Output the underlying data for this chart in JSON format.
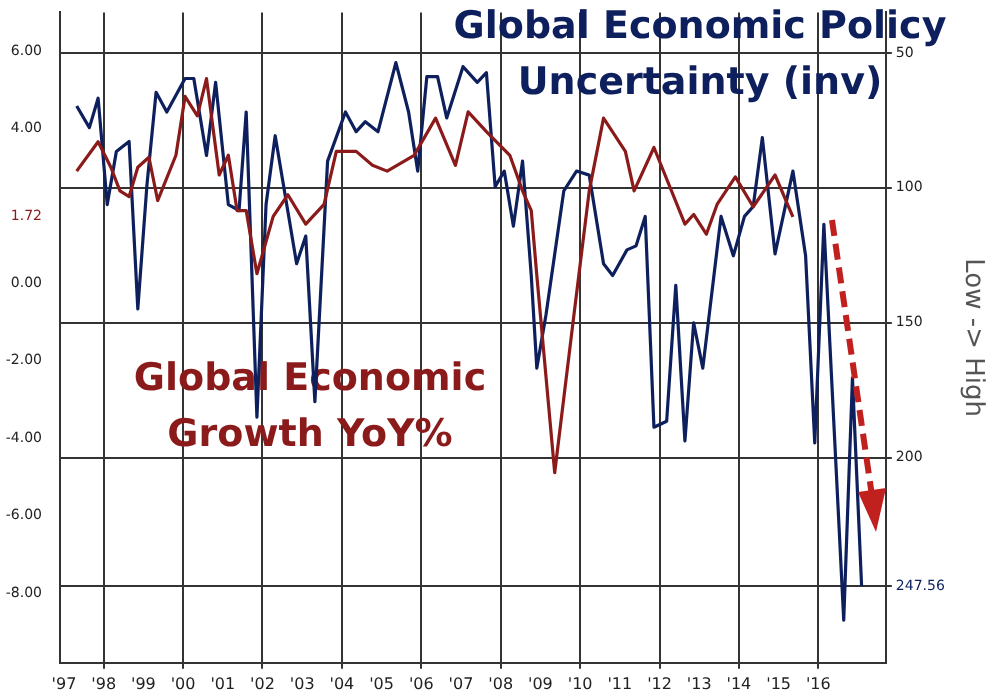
{
  "chart_data": {
    "type": "line",
    "ylabel": null,
    "y2label": "Low -> High",
    "legend": false,
    "grid": true,
    "marker": "none",
    "line_style": "solid",
    "xlim": [
      1996.9,
      2017.7
    ],
    "xticks": [
      {
        "value": 1997,
        "label": "'97"
      },
      {
        "value": 1998,
        "label": "'98"
      },
      {
        "value": 1999,
        "label": "'99"
      },
      {
        "value": 2000,
        "label": "'00"
      },
      {
        "value": 2001,
        "label": "'01"
      },
      {
        "value": 2002,
        "label": "'02"
      },
      {
        "value": 2003,
        "label": "'03"
      },
      {
        "value": 2004,
        "label": "'04"
      },
      {
        "value": 2005,
        "label": "'05"
      },
      {
        "value": 2006,
        "label": "'06"
      },
      {
        "value": 2007,
        "label": "'07"
      },
      {
        "value": 2008,
        "label": "'08"
      },
      {
        "value": 2009,
        "label": "'09"
      },
      {
        "value": 2010,
        "label": "'10"
      },
      {
        "value": 2011,
        "label": "'11"
      },
      {
        "value": 2012,
        "label": "'12"
      },
      {
        "value": 2013,
        "label": "'13"
      },
      {
        "value": 2014,
        "label": "'14"
      },
      {
        "value": 2015,
        "label": "'15"
      },
      {
        "value": 2016,
        "label": "'16"
      }
    ],
    "ylim": [
      -9.8,
      7
    ],
    "yticks": [
      {
        "value": 6,
        "label": "6.00"
      },
      {
        "value": 4,
        "label": "4.00"
      },
      {
        "value": 1.72,
        "label": "1.72"
      },
      {
        "value": 0,
        "label": "0.00"
      },
      {
        "value": -2,
        "label": "-2.00"
      },
      {
        "value": -4,
        "label": "-4.00"
      },
      {
        "value": -6,
        "label": "-6.00"
      },
      {
        "value": -8,
        "label": "-8.00"
      }
    ],
    "y2lim": [
      276,
      35
    ],
    "y2ticks": [
      50,
      100,
      150,
      200,
      {
        "value": 247.56,
        "label": "247.56"
      }
    ],
    "series": [
      {
        "name": "Global Economic Growth YoY%",
        "color": "#8b1a1a",
        "x": [
          1997.32,
          1997.86,
          1998.18,
          1998.41,
          1998.64,
          1998.86,
          1999.14,
          1999.36,
          1999.82,
          2000.05,
          2000.36,
          2000.59,
          2000.91,
          2001.14,
          2001.36,
          2001.59,
          2001.86,
          2002.27,
          2002.64,
          2003.09,
          2003.55,
          2003.86,
          2004.36,
          2004.77,
          2005.14,
          2005.82,
          2006.36,
          2006.86,
          2007.18,
          2007.64,
          2008.23,
          2008.55,
          2008.77,
          2008.91,
          2009.36,
          2009.82,
          2010.23,
          2010.59,
          2011.14,
          2011.36,
          2011.86,
          2012.64,
          2012.86,
          2013.18,
          2013.45,
          2013.91,
          2014.36,
          2014.91,
          2015.36
        ],
        "values": [
          2.9,
          3.66,
          3.0,
          2.39,
          2.24,
          3.0,
          3.26,
          2.14,
          3.31,
          4.83,
          4.33,
          5.29,
          2.8,
          3.31,
          1.88,
          1.88,
          0.25,
          1.73,
          2.29,
          1.53,
          2.04,
          3.41,
          3.41,
          3.05,
          2.9,
          3.31,
          4.27,
          3.05,
          4.43,
          3.92,
          3.31,
          2.39,
          1.88,
          0.2,
          -4.89,
          -1.02,
          2.39,
          4.27,
          3.41,
          2.39,
          3.51,
          1.53,
          1.78,
          1.27,
          2.04,
          2.75,
          1.98,
          2.8,
          1.72
        ]
      },
      {
        "name": "Global Economic Policy Uncertainty (inv)",
        "color": "#0d1f5c",
        "axis": "y2",
        "x": [
          1997.32,
          1997.64,
          1997.86,
          1998.09,
          1998.32,
          1998.64,
          1998.86,
          1999.09,
          1999.32,
          1999.59,
          2000.05,
          2000.27,
          2000.59,
          2000.82,
          2001.14,
          2001.41,
          2001.59,
          2001.86,
          2002.09,
          2002.32,
          2002.86,
          2003.09,
          2003.32,
          2003.64,
          2004.09,
          2004.36,
          2004.59,
          2004.91,
          2005.36,
          2005.68,
          2005.91,
          2006.14,
          2006.41,
          2006.64,
          2007.05,
          2007.41,
          2007.64,
          2007.86,
          2008.09,
          2008.32,
          2008.55,
          2008.77,
          2008.91,
          2009.14,
          2009.59,
          2009.91,
          2010.23,
          2010.59,
          2010.82,
          2011.18,
          2011.41,
          2011.64,
          2011.86,
          2012.18,
          2012.41,
          2012.64,
          2012.86,
          2013.09,
          2013.55,
          2013.86,
          2014.14,
          2014.36,
          2014.59,
          2014.91,
          2015.36,
          2015.68,
          2015.91,
          2016.14,
          2016.64,
          2016.86,
          2017.09
        ],
        "values": [
          69.7,
          77.7,
          66.8,
          106.2,
          86.5,
          82.8,
          144.9,
          98.9,
          64.6,
          71.9,
          59.5,
          59.5,
          88.0,
          60.9,
          106.2,
          108.4,
          71.9,
          185.0,
          106.2,
          80.7,
          128.1,
          117.9,
          179.2,
          90.1,
          71.9,
          79.2,
          75.5,
          79.2,
          53.6,
          71.9,
          93.8,
          58.8,
          58.8,
          74.1,
          55.1,
          60.9,
          57.3,
          99.6,
          93.8,
          114.2,
          90.1,
          132.5,
          166.8,
          147.1,
          101.1,
          93.8,
          95.3,
          128.1,
          132.5,
          123.0,
          121.5,
          110.6,
          188.7,
          186.5,
          136.1,
          193.8,
          150.0,
          166.8,
          110.6,
          125.2,
          110.6,
          106.9,
          81.4,
          124.5,
          93.8,
          125.2,
          194.5,
          113.5,
          260.2,
          170.4,
          247.56
        ]
      }
    ]
  }
}
